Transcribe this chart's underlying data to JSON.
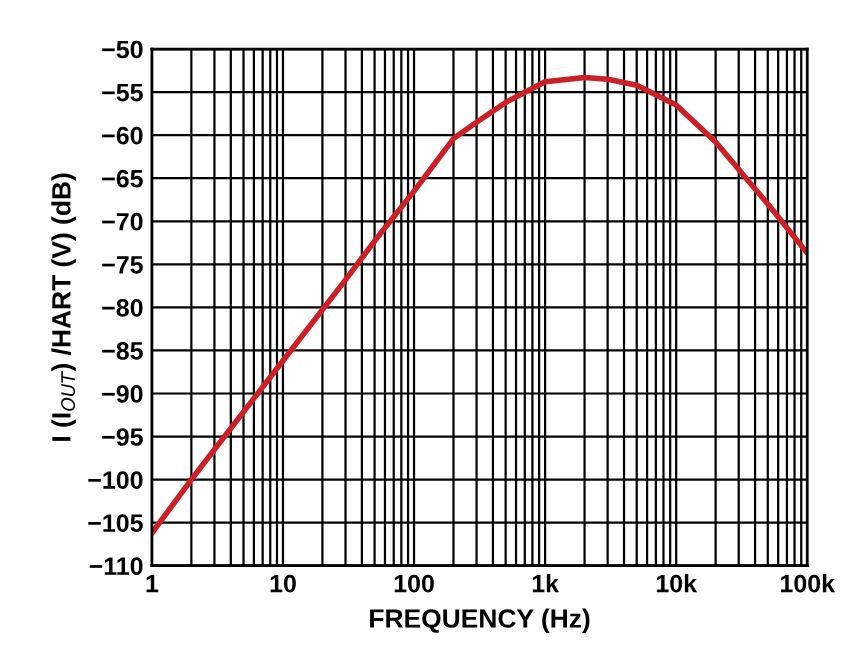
{
  "chart_data": {
    "type": "line",
    "xlabel": "FREQUENCY (Hz)",
    "ylabel": "I (I$_{OUT}$) /HART (V) (dB)",
    "log": "x",
    "grid": true,
    "marker": "none",
    "line_style": "solid",
    "xlim": [
      1,
      100000
    ],
    "ylim": [
      -110,
      -50
    ],
    "xticks": [
      {
        "value": 1,
        "label": "1"
      },
      {
        "value": 2,
        "label": null
      },
      {
        "value": 3,
        "label": null
      },
      {
        "value": 4,
        "label": null
      },
      {
        "value": 5,
        "label": null
      },
      {
        "value": 6,
        "label": null
      },
      {
        "value": 7,
        "label": null
      },
      {
        "value": 8,
        "label": null
      },
      {
        "value": 9,
        "label": null
      },
      {
        "value": 10,
        "label": "10"
      },
      {
        "value": 20,
        "label": null
      },
      {
        "value": 30,
        "label": null
      },
      {
        "value": 40,
        "label": null
      },
      {
        "value": 50,
        "label": null
      },
      {
        "value": 60,
        "label": null
      },
      {
        "value": 70,
        "label": null
      },
      {
        "value": 80,
        "label": null
      },
      {
        "value": 90,
        "label": null
      },
      {
        "value": 100,
        "label": "100"
      },
      {
        "value": 200,
        "label": null
      },
      {
        "value": 300,
        "label": null
      },
      {
        "value": 400,
        "label": null
      },
      {
        "value": 500,
        "label": null
      },
      {
        "value": 600,
        "label": null
      },
      {
        "value": 700,
        "label": null
      },
      {
        "value": 800,
        "label": null
      },
      {
        "value": 900,
        "label": null
      },
      {
        "value": 1000,
        "label": "1k"
      },
      {
        "value": 2000,
        "label": null
      },
      {
        "value": 3000,
        "label": null
      },
      {
        "value": 4000,
        "label": null
      },
      {
        "value": 5000,
        "label": null
      },
      {
        "value": 6000,
        "label": null
      },
      {
        "value": 7000,
        "label": null
      },
      {
        "value": 8000,
        "label": null
      },
      {
        "value": 9000,
        "label": null
      },
      {
        "value": 10000,
        "label": "10k"
      },
      {
        "value": 20000,
        "label": null
      },
      {
        "value": 30000,
        "label": null
      },
      {
        "value": 40000,
        "label": null
      },
      {
        "value": 50000,
        "label": null
      },
      {
        "value": 60000,
        "label": null
      },
      {
        "value": 70000,
        "label": null
      },
      {
        "value": 80000,
        "label": null
      },
      {
        "value": 90000,
        "label": null
      },
      {
        "value": 100000,
        "label": "100k"
      }
    ],
    "yticks": [
      {
        "value": -110,
        "label": "−110"
      },
      {
        "value": -105,
        "label": "−105"
      },
      {
        "value": -100,
        "label": "−100"
      },
      {
        "value": -95,
        "label": "−95"
      },
      {
        "value": -90,
        "label": "−90"
      },
      {
        "value": -85,
        "label": "−85"
      },
      {
        "value": -80,
        "label": "−80"
      },
      {
        "value": -75,
        "label": "−75"
      },
      {
        "value": -70,
        "label": "−70"
      },
      {
        "value": -65,
        "label": "−65"
      },
      {
        "value": -60,
        "label": "−60"
      },
      {
        "value": -55,
        "label": "−55"
      },
      {
        "value": -50,
        "label": "−50"
      }
    ],
    "series": [
      {
        "color": "#cc2027",
        "x": [
          1,
          2,
          3,
          10,
          30,
          50,
          100,
          200,
          300,
          500,
          1000,
          2000,
          3000,
          5000,
          10000,
          20000,
          50000,
          100000
        ],
        "values": [
          -106.2,
          -100,
          -96.5,
          -86.2,
          -76.8,
          -72.3,
          -66.5,
          -60.4,
          -58.5,
          -56.2,
          -53.8,
          -53.3,
          -53.5,
          -54.2,
          -56.5,
          -60.8,
          -68,
          -73.7
        ]
      }
    ]
  }
}
